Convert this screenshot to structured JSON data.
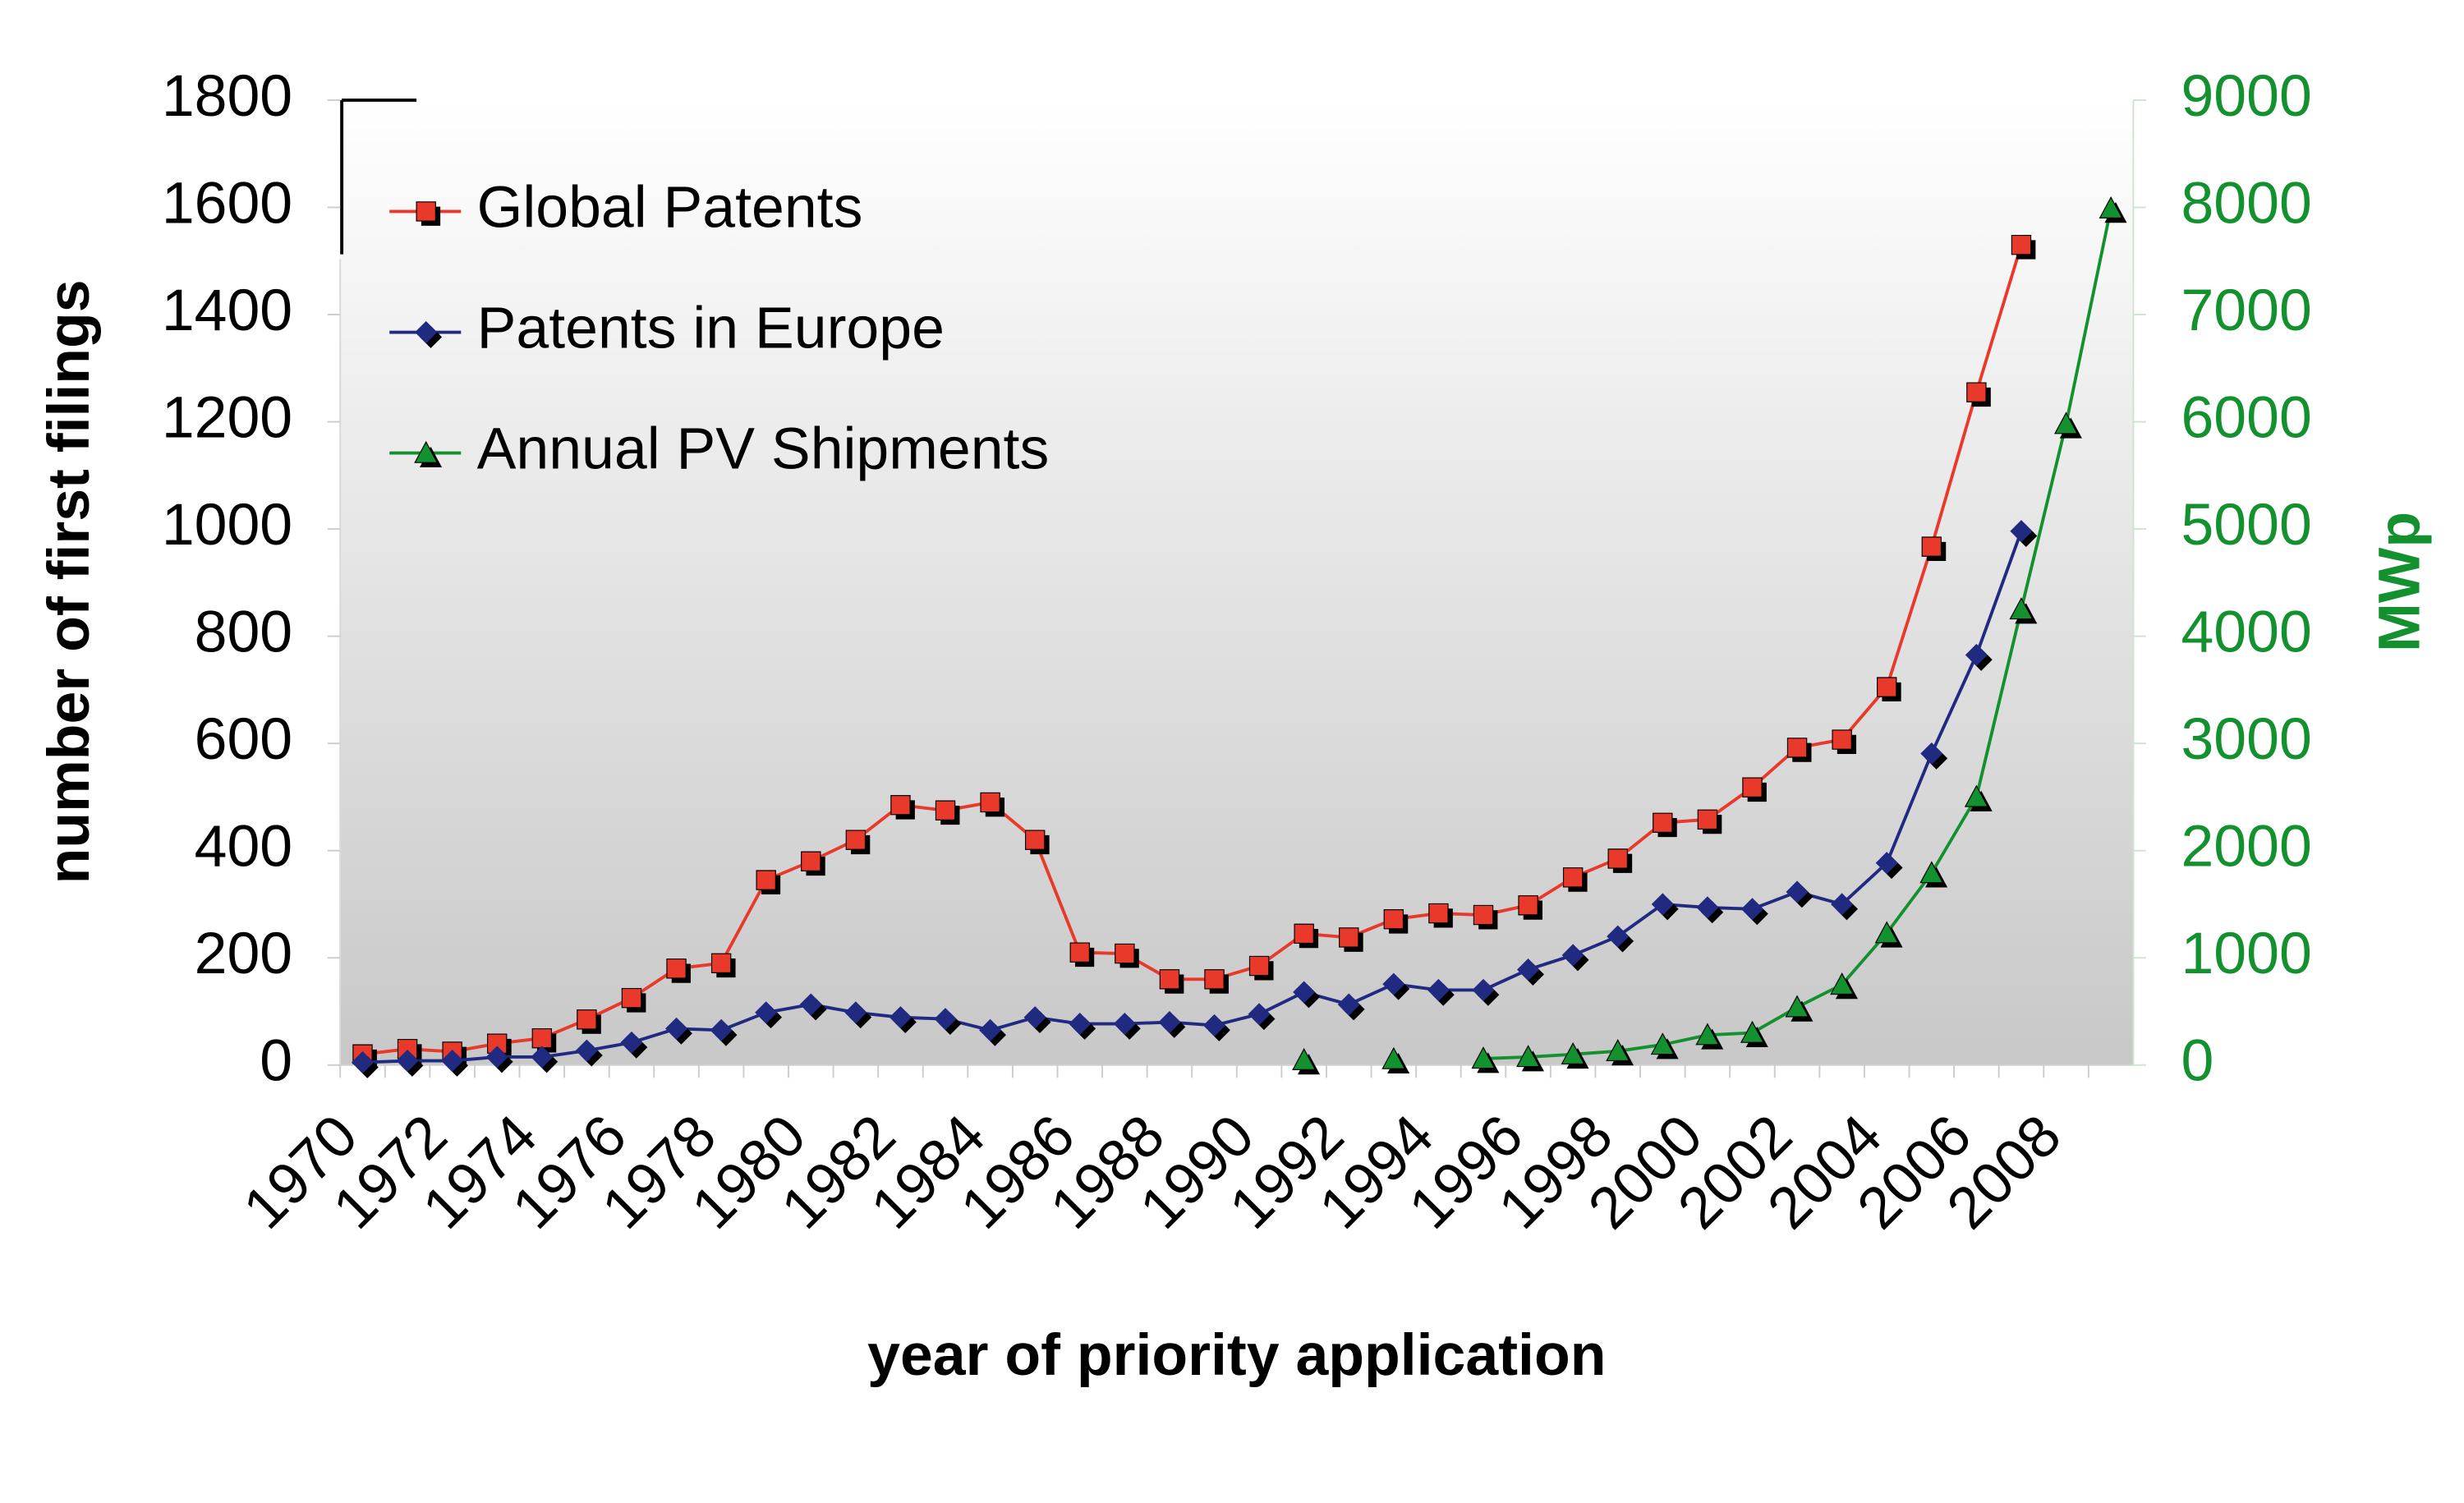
{
  "chart_data": {
    "type": "line",
    "x_label": "year of priority application",
    "y_label": "number of first filings",
    "y2_label": "MWp",
    "categories": [
      "1970",
      null,
      "1972",
      null,
      "1974",
      null,
      "1976",
      null,
      "1978",
      null,
      "1980",
      null,
      "1982",
      null,
      "1984",
      null,
      "1986",
      null,
      "1988",
      null,
      "1990",
      null,
      "1992",
      null,
      "1994",
      null,
      "1996",
      null,
      "1998",
      null,
      "2000",
      null,
      "2002",
      null,
      "2004",
      null,
      "2006",
      null,
      "2008",
      null
    ],
    "series": [
      {
        "name": "Global Patents",
        "color": "#e8392a",
        "marker": "square",
        "values": [
          20,
          30,
          25,
          40,
          50,
          85,
          125,
          180,
          190,
          345,
          380,
          420,
          485,
          475,
          490,
          420,
          210,
          208,
          160,
          160,
          185,
          245,
          238,
          272,
          283,
          280,
          298,
          350,
          385,
          452,
          458,
          518,
          592,
          607,
          705,
          967,
          1255,
          1530,
          null,
          null
        ]
      },
      {
        "name": "Patents in Europe",
        "color": "#1f2a80",
        "marker": "diamond",
        "values": [
          5,
          8,
          8,
          15,
          15,
          27,
          42,
          68,
          65,
          98,
          113,
          98,
          89,
          86,
          65,
          89,
          77,
          77,
          80,
          74,
          95,
          136,
          113,
          151,
          140,
          140,
          178,
          205,
          240,
          300,
          294,
          291,
          323,
          300,
          377,
          581,
          765,
          996,
          null,
          null
        ]
      },
      {
        "name": "Annual PV Shipments",
        "color": "#14912f",
        "marker": "triangle",
        "axis": "y2",
        "values": [
          null,
          null,
          null,
          null,
          null,
          null,
          null,
          null,
          null,
          null,
          null,
          null,
          null,
          null,
          null,
          null,
          null,
          null,
          null,
          null,
          null,
          46,
          null,
          55,
          null,
          60,
          75,
          100,
          130,
          190,
          280,
          300,
          540,
          750,
          1230,
          1790,
          2500,
          4250,
          5980,
          7990
        ]
      }
    ],
    "ylim": [
      0,
      1800
    ],
    "yticks": [
      0,
      200,
      400,
      600,
      800,
      1000,
      1200,
      1400,
      1600,
      1800
    ],
    "y2lim": [
      0,
      9000
    ],
    "y2ticks": [
      0,
      1000,
      2000,
      3000,
      4000,
      5000,
      6000,
      7000,
      8000,
      9000
    ],
    "y2_color": "#14912f",
    "legend": "top-left"
  }
}
